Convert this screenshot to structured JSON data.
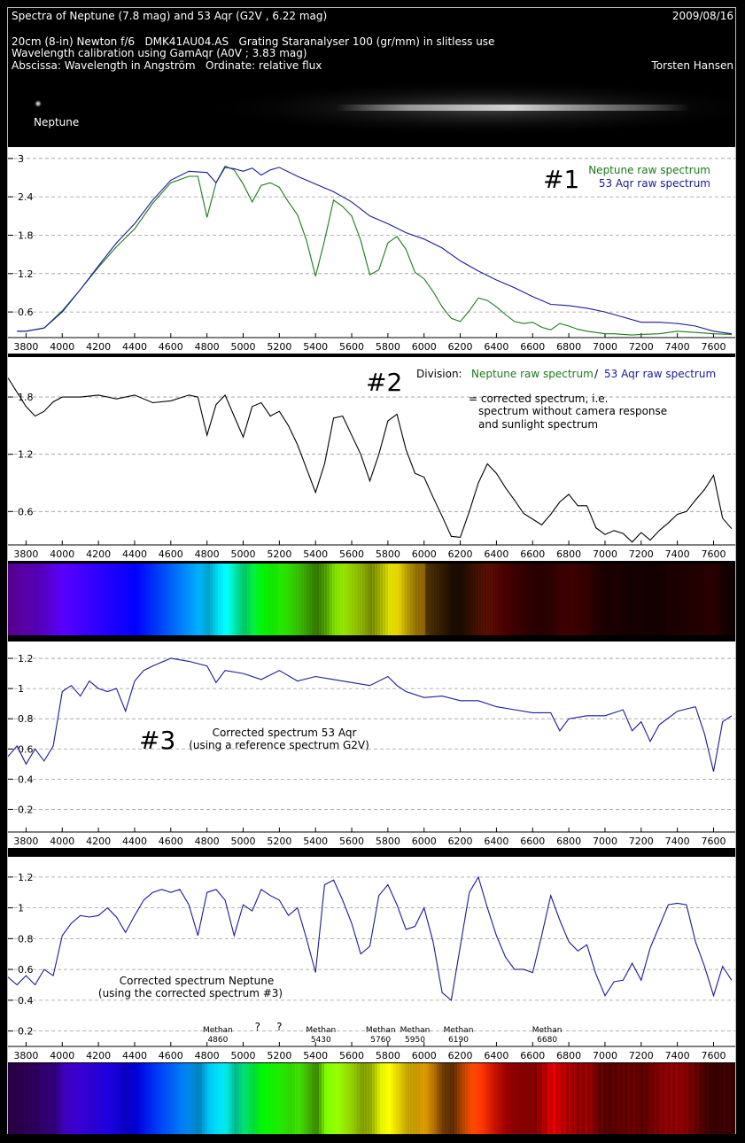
{
  "header": {
    "title": "Spectra of Neptune (7.8 mag) and 53 Aqr (G2V , 6.22 mag)",
    "date": "2009/08/16",
    "line2": "20cm (8-in) Newton f/6   DMK41AU04.AS   Grating Staranalyser 100 (gr/mm) in slitless use",
    "line3": "Wavelength calibration using GamAqr (A0V ; 3.83 mag)",
    "line4": "Abscissa: Wavelength in Angström   Ordinate: relative flux",
    "author": "Torsten Hansen"
  },
  "star_image": {
    "label": "Neptune"
  },
  "colors": {
    "neptune": "#1a7a1a",
    "aqr": "#1a1a9a",
    "black": "#000000",
    "grid": "#9a9a9a"
  },
  "chart_data": [
    {
      "type": "line",
      "panel_number": "#1",
      "xlim": [
        3700,
        7720
      ],
      "ylim": [
        0.2,
        3.15
      ],
      "yticks": [
        0.6,
        1.2,
        1.8,
        2.4,
        3
      ],
      "ytick_labels": [
        "0.6",
        "1.2",
        "1.8",
        "2.4",
        "3"
      ],
      "xticks": [
        3800,
        4000,
        4200,
        4400,
        4600,
        4800,
        5000,
        5200,
        5400,
        5600,
        5800,
        6000,
        6200,
        6400,
        6600,
        6800,
        7000,
        7200,
        7400,
        7600
      ],
      "legend": [
        "Neptune raw spectrum",
        "53 Aqr raw spectrum"
      ],
      "series": [
        {
          "name": "Neptune raw spectrum",
          "color": "#1a7a1a",
          "x": [
            3750,
            3800,
            3900,
            4000,
            4100,
            4200,
            4300,
            4400,
            4500,
            4600,
            4700,
            4750,
            4800,
            4850,
            4900,
            4950,
            5000,
            5050,
            5100,
            5150,
            5200,
            5250,
            5300,
            5350,
            5400,
            5450,
            5500,
            5550,
            5600,
            5650,
            5700,
            5750,
            5800,
            5850,
            5900,
            5950,
            6000,
            6050,
            6100,
            6150,
            6200,
            6250,
            6300,
            6350,
            6400,
            6450,
            6500,
            6550,
            6600,
            6650,
            6700,
            6750,
            6800,
            6850,
            6900,
            6950,
            7000,
            7050,
            7100,
            7150,
            7200,
            7300,
            7400,
            7500,
            7600,
            7700
          ],
          "y": [
            0.3,
            0.3,
            0.35,
            0.62,
            0.95,
            1.3,
            1.62,
            1.9,
            2.3,
            2.62,
            2.72,
            2.72,
            2.08,
            2.62,
            2.88,
            2.82,
            2.6,
            2.32,
            2.58,
            2.62,
            2.55,
            2.32,
            2.12,
            1.72,
            1.16,
            1.72,
            2.35,
            2.25,
            2.1,
            1.72,
            1.18,
            1.26,
            1.68,
            1.78,
            1.58,
            1.22,
            1.12,
            0.92,
            0.68,
            0.5,
            0.45,
            0.62,
            0.82,
            0.78,
            0.68,
            0.56,
            0.45,
            0.42,
            0.44,
            0.36,
            0.32,
            0.42,
            0.38,
            0.33,
            0.3,
            0.28,
            0.26,
            0.26,
            0.25,
            0.24,
            0.25,
            0.26,
            0.3,
            0.28,
            0.26,
            0.25
          ]
        },
        {
          "name": "53 Aqr raw spectrum",
          "color": "#1a1a9a",
          "x": [
            3750,
            3800,
            3900,
            4000,
            4100,
            4200,
            4300,
            4400,
            4500,
            4600,
            4700,
            4800,
            4850,
            4900,
            4950,
            5000,
            5050,
            5100,
            5150,
            5200,
            5300,
            5400,
            5500,
            5600,
            5700,
            5800,
            5900,
            6000,
            6100,
            6200,
            6300,
            6400,
            6500,
            6600,
            6700,
            6800,
            6900,
            7000,
            7100,
            7200,
            7300,
            7400,
            7500,
            7600,
            7700
          ],
          "y": [
            0.3,
            0.3,
            0.35,
            0.6,
            0.95,
            1.32,
            1.68,
            1.98,
            2.35,
            2.66,
            2.8,
            2.78,
            2.62,
            2.86,
            2.84,
            2.8,
            2.85,
            2.74,
            2.82,
            2.86,
            2.72,
            2.6,
            2.48,
            2.32,
            2.1,
            1.98,
            1.84,
            1.74,
            1.6,
            1.4,
            1.24,
            1.1,
            0.98,
            0.84,
            0.72,
            0.7,
            0.66,
            0.6,
            0.52,
            0.44,
            0.44,
            0.42,
            0.38,
            0.3,
            0.26
          ]
        }
      ]
    },
    {
      "type": "line",
      "panel_number": "#2",
      "xlim": [
        3700,
        7720
      ],
      "ylim": [
        0.25,
        2.2
      ],
      "yticks": [
        0.6,
        1.2,
        1.8
      ],
      "ytick_labels": [
        "0.6",
        "1.2",
        "1.8"
      ],
      "xticks": [
        3800,
        4000,
        4200,
        4400,
        4600,
        4800,
        5000,
        5200,
        5400,
        5600,
        5800,
        6000,
        6200,
        6400,
        6600,
        6800,
        7000,
        7200,
        7400,
        7600
      ],
      "annotation": {
        "prefix": "Division:",
        "numerator": "Neptune raw spectrum",
        "separator": "/",
        "denominator": "53 Aqr raw spectrum",
        "lines": [
          "= corrected spectrum, i.e.",
          "spectrum without camera response",
          "and sunlight spectrum"
        ]
      },
      "series": [
        {
          "name": "",
          "color": "#000000",
          "x": [
            3700,
            3750,
            3800,
            3850,
            3900,
            3950,
            4000,
            4100,
            4200,
            4300,
            4400,
            4500,
            4600,
            4700,
            4750,
            4800,
            4850,
            4900,
            4950,
            5000,
            5050,
            5100,
            5150,
            5200,
            5250,
            5300,
            5350,
            5400,
            5450,
            5500,
            5550,
            5600,
            5650,
            5700,
            5750,
            5800,
            5850,
            5900,
            5950,
            6000,
            6050,
            6100,
            6150,
            6200,
            6250,
            6300,
            6350,
            6400,
            6450,
            6500,
            6550,
            6600,
            6650,
            6700,
            6750,
            6800,
            6850,
            6900,
            6950,
            7000,
            7050,
            7100,
            7150,
            7200,
            7250,
            7300,
            7350,
            7400,
            7450,
            7500,
            7550,
            7600,
            7650,
            7700
          ],
          "y": [
            2.0,
            1.85,
            1.7,
            1.6,
            1.65,
            1.75,
            1.8,
            1.8,
            1.82,
            1.78,
            1.82,
            1.74,
            1.76,
            1.82,
            1.8,
            1.4,
            1.72,
            1.82,
            1.6,
            1.38,
            1.7,
            1.74,
            1.6,
            1.65,
            1.5,
            1.3,
            1.05,
            0.8,
            1.1,
            1.58,
            1.6,
            1.4,
            1.2,
            0.92,
            1.2,
            1.55,
            1.62,
            1.25,
            1.0,
            0.96,
            0.75,
            0.55,
            0.34,
            0.33,
            0.6,
            0.9,
            1.1,
            1.0,
            0.85,
            0.72,
            0.6,
            0.5,
            0.48,
            0.55,
            0.72,
            0.76,
            0.68,
            0.64,
            0.45,
            0.34,
            0.42,
            0.35,
            0.3,
            0.36,
            0.32,
            0.38,
            0.5,
            0.55,
            0.62,
            0.7,
            0.85,
            0.96,
            0.55,
            0.4
          ]
        }
      ]
    },
    {
      "type": "line",
      "panel_number": "#3",
      "xlim": [
        3700,
        7720
      ],
      "ylim": [
        0.05,
        1.3
      ],
      "yticks": [
        0.2,
        0.4,
        0.6,
        0.8,
        1,
        1.2
      ],
      "ytick_labels": [
        "0.2",
        "0.4",
        "0.6",
        "0.8",
        "1",
        "1.2"
      ],
      "xticks": [
        3800,
        4000,
        4200,
        4400,
        4600,
        4800,
        5000,
        5200,
        5400,
        5600,
        5800,
        6000,
        6200,
        6400,
        6600,
        6800,
        7000,
        7200,
        7400,
        7600
      ],
      "caption": [
        "Corrected spectrum  53 Aqr",
        "(using a reference spectrum G2V)"
      ],
      "series": [
        {
          "name": "",
          "color": "#1a1a9a",
          "x": [
            3700,
            3750,
            3800,
            3850,
            3900,
            3950,
            4000,
            4050,
            4100,
            4150,
            4200,
            4250,
            4300,
            4350,
            4400,
            4450,
            4500,
            4600,
            4700,
            4800,
            4850,
            4900,
            5000,
            5100,
            5200,
            5300,
            5400,
            5500,
            5600,
            5700,
            5800,
            5850,
            5900,
            6000,
            6100,
            6200,
            6300,
            6400,
            6500,
            6600,
            6700,
            6750,
            6800,
            6900,
            7000,
            7100,
            7150,
            7200,
            7250,
            7300,
            7400,
            7500,
            7550,
            7600,
            7650,
            7700
          ],
          "y": [
            0.55,
            0.62,
            0.5,
            0.6,
            0.52,
            0.62,
            0.98,
            1.02,
            0.95,
            1.05,
            1.0,
            0.98,
            1.0,
            0.85,
            1.05,
            1.12,
            1.15,
            1.2,
            1.18,
            1.15,
            1.04,
            1.12,
            1.1,
            1.06,
            1.12,
            1.05,
            1.08,
            1.06,
            1.04,
            1.02,
            1.08,
            1.02,
            0.98,
            0.94,
            0.95,
            0.92,
            0.92,
            0.88,
            0.86,
            0.84,
            0.84,
            0.72,
            0.8,
            0.82,
            0.82,
            0.86,
            0.72,
            0.78,
            0.65,
            0.76,
            0.85,
            0.88,
            0.7,
            0.45,
            0.78,
            0.82
          ]
        }
      ]
    },
    {
      "type": "line",
      "panel_number": "",
      "xlim": [
        3700,
        7720
      ],
      "ylim": [
        0.1,
        1.32
      ],
      "yticks": [
        0.2,
        0.4,
        0.6,
        0.8,
        1,
        1.2
      ],
      "ytick_labels": [
        "0.2",
        "0.4",
        "0.6",
        "0.8",
        "1",
        "1.2"
      ],
      "xticks": [
        3800,
        4000,
        4200,
        4400,
        4600,
        4800,
        5000,
        5200,
        5400,
        5600,
        5800,
        6000,
        6200,
        6400,
        6600,
        6800,
        7000,
        7200,
        7400,
        7600
      ],
      "caption": [
        "Corrected spectrum  Neptune",
        "(using the corrected spectrum #3)"
      ],
      "annotations": [
        {
          "x": 4860,
          "label": "Methan",
          "value": "4860"
        },
        {
          "x": 5080,
          "label": "?",
          "value": ""
        },
        {
          "x": 5200,
          "label": "?",
          "value": ""
        },
        {
          "x": 5430,
          "label": "Methan",
          "value": "5430"
        },
        {
          "x": 5760,
          "label": "Methan",
          "value": "5760"
        },
        {
          "x": 5950,
          "label": "Methan",
          "value": "5950"
        },
        {
          "x": 6190,
          "label": "Methan",
          "value": "6190"
        },
        {
          "x": 6680,
          "label": "Methan",
          "value": "6680"
        }
      ],
      "series": [
        {
          "name": "",
          "color": "#1a1a9a",
          "x": [
            3700,
            3750,
            3800,
            3850,
            3900,
            3950,
            4000,
            4050,
            4100,
            4150,
            4200,
            4250,
            4300,
            4350,
            4400,
            4450,
            4500,
            4550,
            4600,
            4650,
            4700,
            4750,
            4800,
            4850,
            4900,
            4950,
            5000,
            5050,
            5100,
            5150,
            5200,
            5250,
            5300,
            5350,
            5400,
            5450,
            5500,
            5550,
            5600,
            5650,
            5700,
            5750,
            5800,
            5850,
            5900,
            5950,
            6000,
            6050,
            6100,
            6150,
            6200,
            6250,
            6300,
            6350,
            6400,
            6450,
            6500,
            6550,
            6600,
            6650,
            6700,
            6750,
            6800,
            6850,
            6900,
            6950,
            7000,
            7050,
            7100,
            7150,
            7200,
            7250,
            7300,
            7350,
            7400,
            7450,
            7500,
            7550,
            7600,
            7650,
            7700
          ],
          "y": [
            0.55,
            0.5,
            0.56,
            0.5,
            0.6,
            0.56,
            0.82,
            0.9,
            0.95,
            0.94,
            0.95,
            1.0,
            0.94,
            0.84,
            0.95,
            1.05,
            1.1,
            1.12,
            1.1,
            1.12,
            1.02,
            0.82,
            1.1,
            1.12,
            1.05,
            0.82,
            1.02,
            0.98,
            1.12,
            1.08,
            1.05,
            0.95,
            1.0,
            0.8,
            0.58,
            1.15,
            1.18,
            1.05,
            0.9,
            0.7,
            0.75,
            1.08,
            1.15,
            1.02,
            0.86,
            0.88,
            1.0,
            0.78,
            0.45,
            0.4,
            0.75,
            1.1,
            1.2,
            1.0,
            0.82,
            0.68,
            0.6,
            0.58,
            0.6,
            0.8,
            1.1,
            0.9,
            0.8,
            0.7,
            0.78,
            0.55,
            0.45,
            0.5,
            0.55,
            0.62,
            0.55,
            0.72,
            0.9,
            1.0,
            1.05,
            1.0,
            0.8,
            0.6,
            0.45,
            0.6,
            0.55
          ]
        }
      ]
    }
  ]
}
